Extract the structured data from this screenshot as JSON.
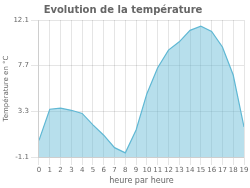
{
  "chart_data": {
    "type": "area",
    "title": "Evolution de la température",
    "xlabel": "heure par heure",
    "ylabel": "Température en °C",
    "x": [
      0,
      1,
      2,
      3,
      4,
      5,
      6,
      7,
      8,
      9,
      10,
      11,
      12,
      13,
      14,
      15,
      16,
      17,
      18,
      19
    ],
    "values": [
      0.5,
      3.5,
      3.6,
      3.4,
      3.1,
      2.0,
      1.0,
      -0.2,
      -0.7,
      1.5,
      5.0,
      7.5,
      9.2,
      10.0,
      11.1,
      11.5,
      11.0,
      9.5,
      6.8,
      1.8
    ],
    "color": "#60b8d4",
    "xlim": [
      0,
      19
    ],
    "ylim": [
      -1.1,
      12.1
    ],
    "xticks": [
      0,
      1,
      2,
      3,
      4,
      5,
      6,
      7,
      8,
      9,
      10,
      11,
      12,
      13,
      14,
      15,
      16,
      17,
      18,
      19
    ],
    "yticks": [
      -1.1,
      3.3,
      7.7,
      12.1
    ],
    "grid": true
  }
}
